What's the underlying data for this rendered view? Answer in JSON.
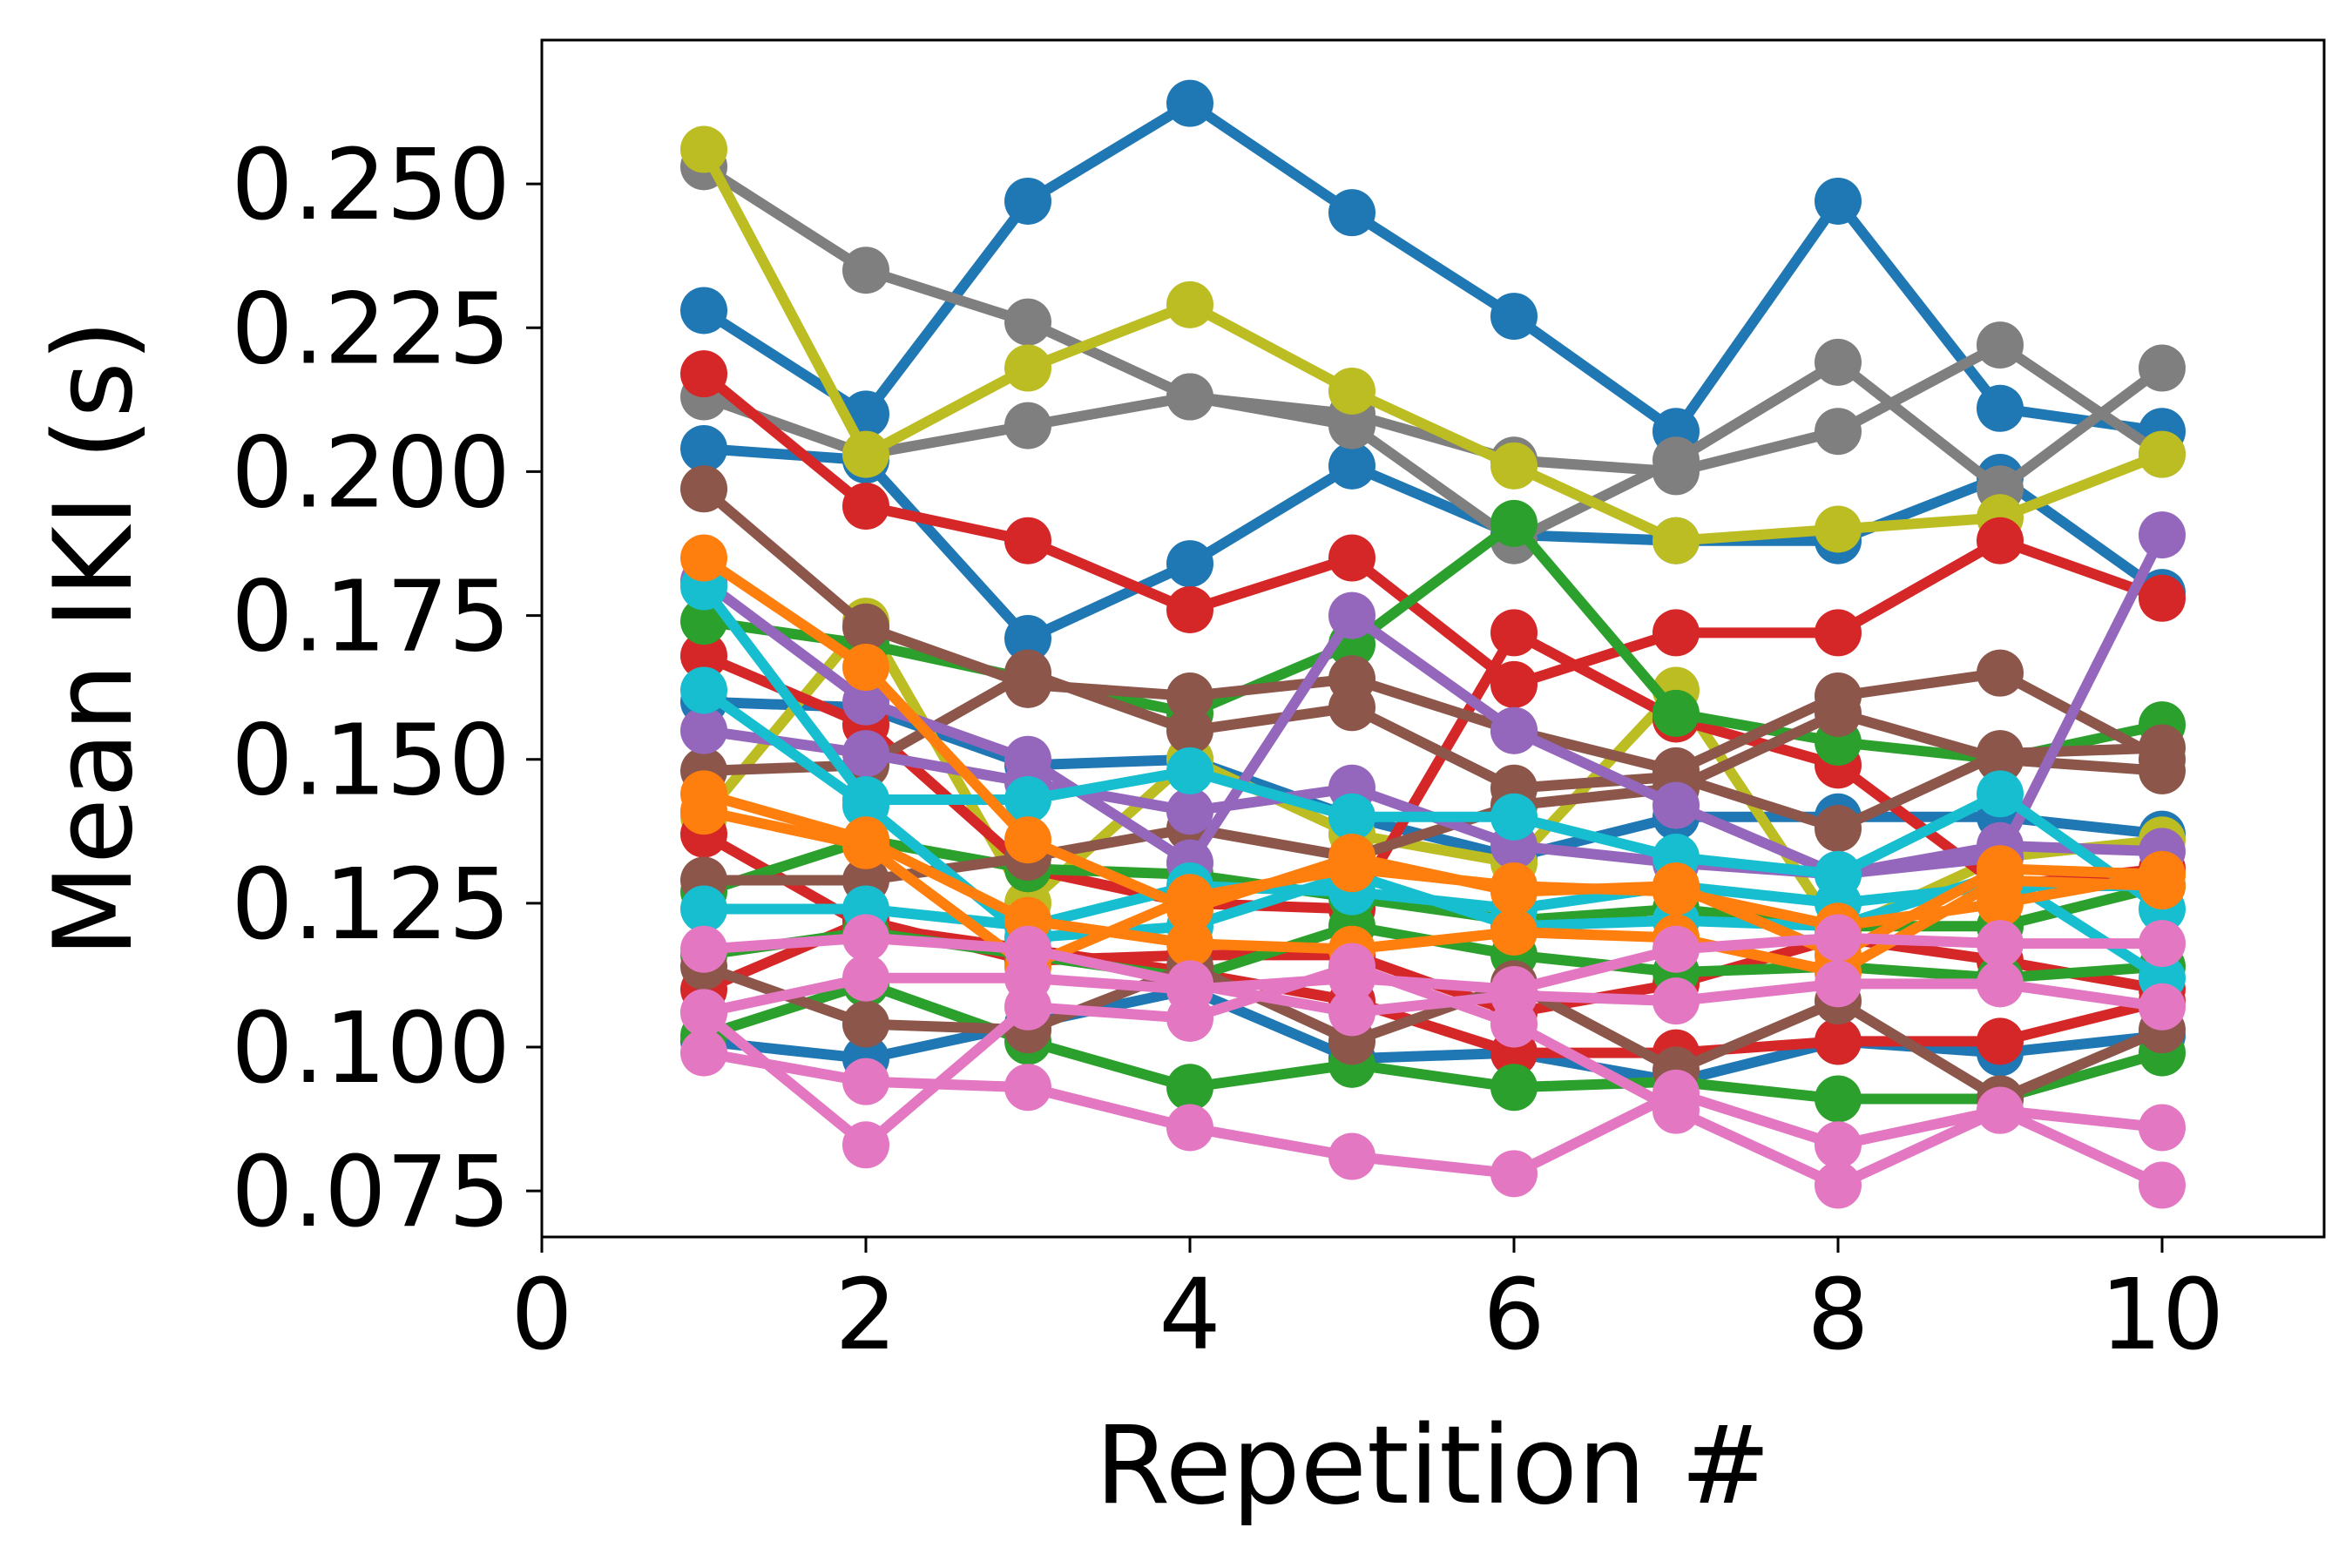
{
  "chart_data": {
    "type": "line",
    "title": "",
    "xlabel": "Repetition #",
    "ylabel": "Mean IKI (s)",
    "xlim": [
      0,
      11
    ],
    "ylim": [
      0.067,
      0.275
    ],
    "xticks": [
      0,
      2,
      4,
      6,
      8,
      10
    ],
    "xtick_labels": [
      "0",
      "2",
      "4",
      "6",
      "8",
      "10"
    ],
    "yticks": [
      0.075,
      0.1,
      0.125,
      0.15,
      0.175,
      0.2,
      0.225,
      0.25
    ],
    "ytick_labels": [
      "0.075",
      "0.100",
      "0.125",
      "0.150",
      "0.175",
      "0.200",
      "0.225",
      "0.250"
    ],
    "grid": false,
    "legend": "none",
    "x": [
      1,
      2,
      3,
      4,
      5,
      6,
      7,
      8,
      9,
      10
    ],
    "series": [
      {
        "color": "#1f77b4",
        "values": [
          0.228,
          0.21,
          0.247,
          0.264,
          0.245,
          0.227,
          0.207,
          0.247,
          0.211,
          0.207
        ]
      },
      {
        "color": "#1f77b4",
        "values": [
          0.204,
          0.202,
          0.171,
          0.184,
          0.201,
          0.189,
          0.188,
          0.188,
          0.199,
          0.179
        ]
      },
      {
        "color": "#1f77b4",
        "values": [
          0.16,
          0.159,
          0.149,
          0.15,
          0.14,
          0.133,
          0.14,
          0.14,
          0.14,
          0.137
        ]
      },
      {
        "color": "#1f77b4",
        "values": [
          0.101,
          0.098,
          0.104,
          0.11,
          0.098,
          0.099,
          0.094,
          0.101,
          0.099,
          0.102
        ]
      },
      {
        "color": "#7f7f7f",
        "values": [
          0.253,
          0.235,
          0.226,
          0.213,
          0.208,
          0.188,
          0.202,
          0.219,
          0.197,
          0.218
        ]
      },
      {
        "color": "#7f7f7f",
        "values": [
          0.213,
          0.203,
          0.208,
          0.213,
          0.21,
          0.202,
          0.2,
          0.207,
          0.222,
          0.203
        ]
      },
      {
        "color": "#bcbd22",
        "values": [
          0.256,
          0.203,
          0.218,
          0.229,
          0.214,
          0.201,
          0.188,
          0.19,
          0.192,
          0.203
        ]
      },
      {
        "color": "#bcbd22",
        "values": [
          0.14,
          0.174,
          0.125,
          0.15,
          0.137,
          0.132,
          0.162,
          0.12,
          0.133,
          0.136
        ]
      },
      {
        "color": "#d62728",
        "values": [
          0.217,
          0.194,
          0.188,
          0.176,
          0.185,
          0.163,
          0.172,
          0.172,
          0.188,
          0.178
        ]
      },
      {
        "color": "#d62728",
        "values": [
          0.168,
          0.156,
          0.131,
          0.125,
          0.124,
          0.172,
          0.157,
          0.149,
          0.128,
          0.131
        ]
      },
      {
        "color": "#d62728",
        "values": [
          0.137,
          0.121,
          0.117,
          0.113,
          0.108,
          0.099,
          0.099,
          0.101,
          0.101,
          0.108
        ]
      },
      {
        "color": "#d62728",
        "values": [
          0.11,
          0.122,
          0.115,
          0.116,
          0.116,
          0.106,
          0.111,
          0.119,
          0.115,
          0.11
        ]
      },
      {
        "color": "#2ca02c",
        "values": [
          0.174,
          0.17,
          0.164,
          0.158,
          0.17,
          0.191,
          0.158,
          0.153,
          0.15,
          0.156
        ]
      },
      {
        "color": "#2ca02c",
        "values": [
          0.116,
          0.12,
          0.116,
          0.112,
          0.121,
          0.116,
          0.113,
          0.114,
          0.112,
          0.114
        ]
      },
      {
        "color": "#2ca02c",
        "values": [
          0.102,
          0.111,
          0.101,
          0.093,
          0.097,
          0.093,
          0.094,
          0.091,
          0.091,
          0.099
        ]
      },
      {
        "color": "#2ca02c",
        "values": [
          0.127,
          0.136,
          0.131,
          0.13,
          0.126,
          0.122,
          0.124,
          0.121,
          0.121,
          0.128
        ]
      },
      {
        "color": "#8c564b",
        "values": [
          0.197,
          0.173,
          0.163,
          0.161,
          0.164,
          0.155,
          0.148,
          0.161,
          0.165,
          0.15
        ]
      },
      {
        "color": "#8c564b",
        "values": [
          0.148,
          0.149,
          0.165,
          0.155,
          0.159,
          0.145,
          0.147,
          0.138,
          0.151,
          0.152
        ]
      },
      {
        "color": "#8c564b",
        "values": [
          0.129,
          0.129,
          0.133,
          0.138,
          0.133,
          0.142,
          0.145,
          0.158,
          0.15,
          0.148
        ]
      },
      {
        "color": "#8c564b",
        "values": [
          0.114,
          0.104,
          0.103,
          0.114,
          0.101,
          0.111,
          0.096,
          0.108,
          0.091,
          0.103
        ]
      },
      {
        "color": "#9467bd",
        "values": [
          0.181,
          0.16,
          0.15,
          0.132,
          0.175,
          0.155,
          0.142,
          0.13,
          0.133,
          0.189
        ]
      },
      {
        "color": "#9467bd",
        "values": [
          0.155,
          0.151,
          0.146,
          0.141,
          0.145,
          0.135,
          0.132,
          0.13,
          0.135,
          0.134
        ]
      },
      {
        "color": "#17becf",
        "values": [
          0.18,
          0.143,
          0.143,
          0.148,
          0.14,
          0.14,
          0.133,
          0.13,
          0.144,
          0.124
        ]
      },
      {
        "color": "#17becf",
        "values": [
          0.162,
          0.142,
          0.119,
          0.121,
          0.13,
          0.121,
          0.122,
          0.121,
          0.13,
          0.112
        ]
      },
      {
        "color": "#17becf",
        "values": [
          0.124,
          0.124,
          0.121,
          0.128,
          0.127,
          0.124,
          0.128,
          0.125,
          0.128,
          0.128
        ]
      },
      {
        "color": "#ff7f0e",
        "values": [
          0.185,
          0.166,
          0.136,
          0.124,
          0.133,
          0.127,
          0.128,
          0.116,
          0.131,
          0.13
        ]
      },
      {
        "color": "#ff7f0e",
        "values": [
          0.144,
          0.136,
          0.122,
          0.118,
          0.117,
          0.12,
          0.119,
          0.113,
          0.129,
          0.128
        ]
      },
      {
        "color": "#ff7f0e",
        "values": [
          0.141,
          0.135,
          0.114,
          0.126,
          0.131,
          0.128,
          0.127,
          0.121,
          0.125,
          0.13
        ]
      },
      {
        "color": "#e377c2",
        "values": [
          0.106,
          0.112,
          0.112,
          0.11,
          0.112,
          0.11,
          0.117,
          0.119,
          0.118,
          0.118
        ]
      },
      {
        "color": "#e377c2",
        "values": [
          0.106,
          0.083,
          0.107,
          0.105,
          0.114,
          0.104,
          0.089,
          0.076,
          0.089,
          0.076
        ]
      },
      {
        "color": "#e377c2",
        "values": [
          0.099,
          0.094,
          0.093,
          0.086,
          0.081,
          0.078,
          0.092,
          0.083,
          0.089,
          0.086
        ]
      },
      {
        "color": "#e377c2",
        "values": [
          0.117,
          0.119,
          0.117,
          0.111,
          0.106,
          0.109,
          0.108,
          0.111,
          0.111,
          0.107
        ]
      }
    ]
  }
}
